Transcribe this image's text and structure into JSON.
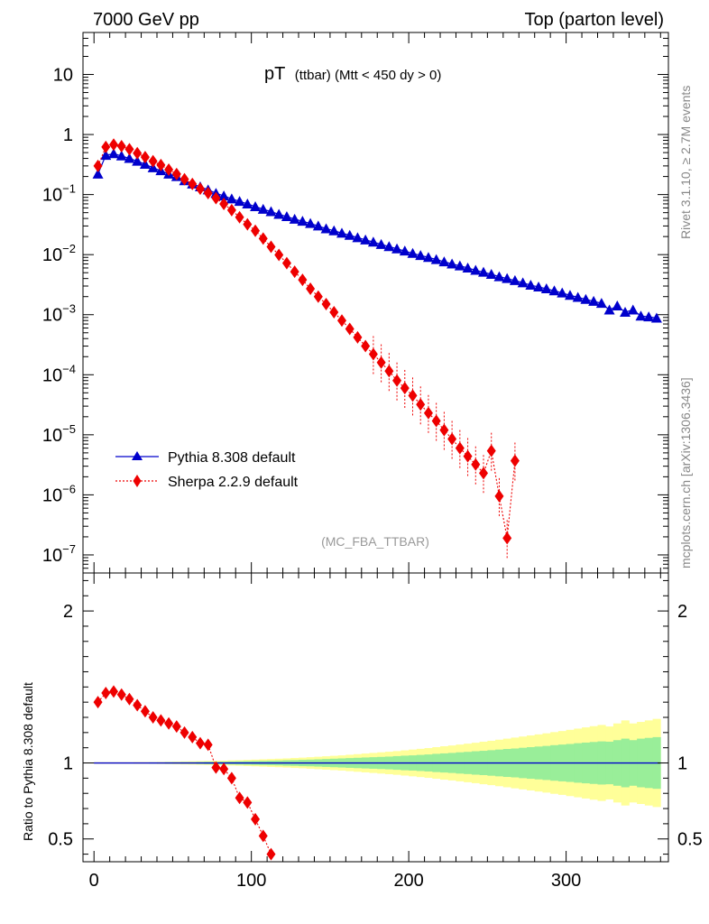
{
  "header": {
    "left": "7000 GeV pp",
    "right": "Top (parton level)"
  },
  "title": {
    "main": "pT",
    "sub": "(ttbar) (Mtt < 450 dy > 0)"
  },
  "analysis_label": "(MC_FBA_TTBAR)",
  "side_labels": {
    "rivet": "Rivet 3.1.10, ≥ 2.7M events",
    "mcplots": "mcplots.cern.ch [arXiv:1306.3436]"
  },
  "legend": [
    {
      "label": "Pythia 8.308 default",
      "color": "#0000cc",
      "marker": "triangle",
      "line": "solid"
    },
    {
      "label": "Sherpa 2.2.9 default",
      "color": "#ee0000",
      "marker": "diamond",
      "line": "dotted"
    }
  ],
  "colors": {
    "pythia": "#0000cc",
    "sherpa": "#ee0000",
    "band_outer": "#ffff99",
    "band_inner": "#99ee99"
  },
  "chart_data": [
    {
      "type": "scatter",
      "scale": "log",
      "xlim": [
        -7,
        365
      ],
      "ylim": [
        5e-08,
        50
      ],
      "yticks": [
        {
          "v": 10,
          "label": "10",
          "sup": ""
        },
        {
          "v": 1,
          "label": "1",
          "sup": ""
        },
        {
          "v": 0.1,
          "label": "10",
          "sup": "−1"
        },
        {
          "v": 0.01,
          "label": "10",
          "sup": "−2"
        },
        {
          "v": 0.001,
          "label": "10",
          "sup": "−3"
        },
        {
          "v": 0.0001,
          "label": "10",
          "sup": "−4"
        },
        {
          "v": 1e-05,
          "label": "10",
          "sup": "−5"
        },
        {
          "v": 1e-06,
          "label": "10",
          "sup": "−6"
        },
        {
          "v": 1e-07,
          "label": "10",
          "sup": "−7"
        }
      ],
      "series": [
        {
          "name": "Pythia 8.308 default",
          "x": [
            2.5,
            7.5,
            12.5,
            17.5,
            22.5,
            27.5,
            32.5,
            37.5,
            42.5,
            47.5,
            52.5,
            57.5,
            62.5,
            67.5,
            72.5,
            77.5,
            82.5,
            87.5,
            92.5,
            97.5,
            102.5,
            107.5,
            112.5,
            117.5,
            122.5,
            127.5,
            132.5,
            137.5,
            142.5,
            147.5,
            152.5,
            157.5,
            162.5,
            167.5,
            172.5,
            177.5,
            182.5,
            187.5,
            192.5,
            197.5,
            202.5,
            207.5,
            212.5,
            217.5,
            222.5,
            227.5,
            232.5,
            237.5,
            242.5,
            247.5,
            252.5,
            257.5,
            262.5,
            267.5,
            272.5,
            277.5,
            282.5,
            287.5,
            292.5,
            297.5,
            302.5,
            307.5,
            312.5,
            317.5,
            322.5,
            327.5,
            332.5,
            337.5,
            342.5,
            347.5,
            352.5,
            357.5
          ],
          "y": [
            0.22,
            0.45,
            0.48,
            0.44,
            0.4,
            0.36,
            0.32,
            0.28,
            0.25,
            0.22,
            0.2,
            0.17,
            0.15,
            0.135,
            0.12,
            0.105,
            0.095,
            0.085,
            0.077,
            0.07,
            0.063,
            0.057,
            0.052,
            0.047,
            0.043,
            0.039,
            0.036,
            0.033,
            0.03,
            0.027,
            0.025,
            0.0228,
            0.021,
            0.0192,
            0.0176,
            0.0162,
            0.0148,
            0.0136,
            0.0125,
            0.0115,
            0.0105,
            0.0097,
            0.009,
            0.0083,
            0.0076,
            0.007,
            0.0065,
            0.006,
            0.0055,
            0.0051,
            0.0047,
            0.0043,
            0.004,
            0.0037,
            0.0034,
            0.0031,
            0.0029,
            0.0027,
            0.0025,
            0.0023,
            0.0021,
            0.00195,
            0.0018,
            0.00167,
            0.00155,
            0.0012,
            0.0014,
            0.0011,
            0.0012,
            0.00095,
            0.00092,
            0.00088
          ]
        },
        {
          "name": "Sherpa 2.2.9 default",
          "x": [
            2.5,
            7.5,
            12.5,
            17.5,
            22.5,
            27.5,
            32.5,
            37.5,
            42.5,
            47.5,
            52.5,
            57.5,
            62.5,
            67.5,
            72.5,
            77.5,
            82.5,
            87.5,
            92.5,
            97.5,
            102.5,
            107.5,
            112.5,
            117.5,
            122.5,
            127.5,
            132.5,
            137.5,
            142.5,
            147.5,
            152.5,
            157.5,
            162.5,
            167.5,
            172.5,
            177.5,
            182.5,
            187.5,
            192.5,
            197.5,
            202.5,
            207.5,
            212.5,
            217.5,
            222.5,
            227.5,
            232.5,
            237.5,
            242.5,
            247.5,
            252.5,
            257.5,
            262.5,
            267.5
          ],
          "y": [
            0.3,
            0.62,
            0.68,
            0.64,
            0.57,
            0.49,
            0.42,
            0.36,
            0.31,
            0.26,
            0.22,
            0.18,
            0.15,
            0.125,
            0.106,
            0.087,
            0.07,
            0.055,
            0.042,
            0.032,
            0.025,
            0.0185,
            0.0135,
            0.0099,
            0.0072,
            0.0052,
            0.0038,
            0.0027,
            0.002,
            0.0015,
            0.0011,
            0.0008,
            0.00058,
            0.00042,
            0.0003,
            0.00022,
            0.00016,
            0.000115,
            8e-05,
            6e-05,
            4.5e-05,
            3.2e-05,
            2.3e-05,
            1.7e-05,
            1.2e-05,
            8.5e-06,
            6e-06,
            4.4e-06,
            3.2e-06,
            2.3e-06,
            5.4e-06,
            9.5e-07,
            1.9e-07,
            3.7e-06
          ]
        }
      ]
    },
    {
      "type": "scatter",
      "scale": "linear",
      "ylabel": "Ratio to Pythia 8.308 default",
      "xlim": [
        -7,
        365
      ],
      "ylim": [
        0.35,
        2.25
      ],
      "yticks": [
        {
          "v": 2,
          "label": "2"
        },
        {
          "v": 1,
          "label": "1"
        },
        {
          "v": 0.5,
          "label": "0.5"
        }
      ],
      "xticks": [
        {
          "v": 0,
          "label": "0"
        },
        {
          "v": 100,
          "label": "100"
        },
        {
          "v": 200,
          "label": "200"
        },
        {
          "v": 300,
          "label": "300"
        }
      ],
      "band": {
        "x": [
          2.5,
          7.5,
          12.5,
          17.5,
          22.5,
          27.5,
          32.5,
          37.5,
          42.5,
          47.5,
          52.5,
          57.5,
          62.5,
          67.5,
          72.5,
          77.5,
          82.5,
          87.5,
          92.5,
          97.5,
          102.5,
          107.5,
          112.5,
          117.5,
          122.5,
          127.5,
          132.5,
          137.5,
          142.5,
          147.5,
          152.5,
          157.5,
          162.5,
          167.5,
          172.5,
          177.5,
          182.5,
          187.5,
          192.5,
          197.5,
          202.5,
          207.5,
          212.5,
          217.5,
          222.5,
          227.5,
          232.5,
          237.5,
          242.5,
          247.5,
          252.5,
          257.5,
          262.5,
          267.5,
          272.5,
          277.5,
          282.5,
          287.5,
          292.5,
          297.5,
          302.5,
          307.5,
          312.5,
          317.5,
          322.5,
          327.5,
          332.5,
          337.5,
          342.5,
          347.5,
          352.5,
          357.5
        ],
        "inner": [
          0.003,
          0.003,
          0.003,
          0.003,
          0.003,
          0.003,
          0.003,
          0.004,
          0.004,
          0.005,
          0.005,
          0.006,
          0.006,
          0.007,
          0.008,
          0.008,
          0.009,
          0.01,
          0.011,
          0.012,
          0.013,
          0.014,
          0.015,
          0.016,
          0.018,
          0.019,
          0.021,
          0.022,
          0.024,
          0.026,
          0.028,
          0.03,
          0.032,
          0.034,
          0.036,
          0.038,
          0.04,
          0.042,
          0.045,
          0.048,
          0.05,
          0.053,
          0.056,
          0.06,
          0.063,
          0.066,
          0.07,
          0.073,
          0.077,
          0.08,
          0.084,
          0.088,
          0.092,
          0.095,
          0.1,
          0.104,
          0.108,
          0.112,
          0.117,
          0.121,
          0.125,
          0.13,
          0.134,
          0.138,
          0.142,
          0.14,
          0.15,
          0.16,
          0.15,
          0.16,
          0.165,
          0.17
        ],
        "outer": [
          0.005,
          0.005,
          0.005,
          0.005,
          0.005,
          0.006,
          0.006,
          0.006,
          0.007,
          0.008,
          0.009,
          0.01,
          0.011,
          0.012,
          0.013,
          0.014,
          0.015,
          0.017,
          0.018,
          0.02,
          0.022,
          0.024,
          0.026,
          0.028,
          0.03,
          0.033,
          0.035,
          0.038,
          0.041,
          0.044,
          0.047,
          0.05,
          0.054,
          0.058,
          0.062,
          0.066,
          0.07,
          0.074,
          0.078,
          0.083,
          0.088,
          0.093,
          0.098,
          0.104,
          0.11,
          0.115,
          0.121,
          0.127,
          0.133,
          0.14,
          0.146,
          0.153,
          0.16,
          0.167,
          0.174,
          0.181,
          0.188,
          0.195,
          0.203,
          0.21,
          0.218,
          0.226,
          0.234,
          0.242,
          0.25,
          0.24,
          0.26,
          0.28,
          0.26,
          0.27,
          0.28,
          0.29
        ]
      },
      "series": [
        {
          "name": "Sherpa 2.2.9 default",
          "x": [
            2.5,
            7.5,
            12.5,
            17.5,
            22.5,
            27.5,
            32.5,
            37.5,
            42.5,
            47.5,
            52.5,
            57.5,
            62.5,
            67.5,
            72.5,
            77.5,
            82.5,
            87.5,
            92.5,
            97.5,
            102.5,
            107.5,
            112.5
          ],
          "y": [
            1.4,
            1.46,
            1.47,
            1.45,
            1.42,
            1.38,
            1.34,
            1.3,
            1.28,
            1.26,
            1.24,
            1.2,
            1.17,
            1.13,
            1.12,
            0.97,
            0.96,
            0.9,
            0.77,
            0.74,
            0.63,
            0.52,
            0.4
          ]
        }
      ]
    }
  ]
}
